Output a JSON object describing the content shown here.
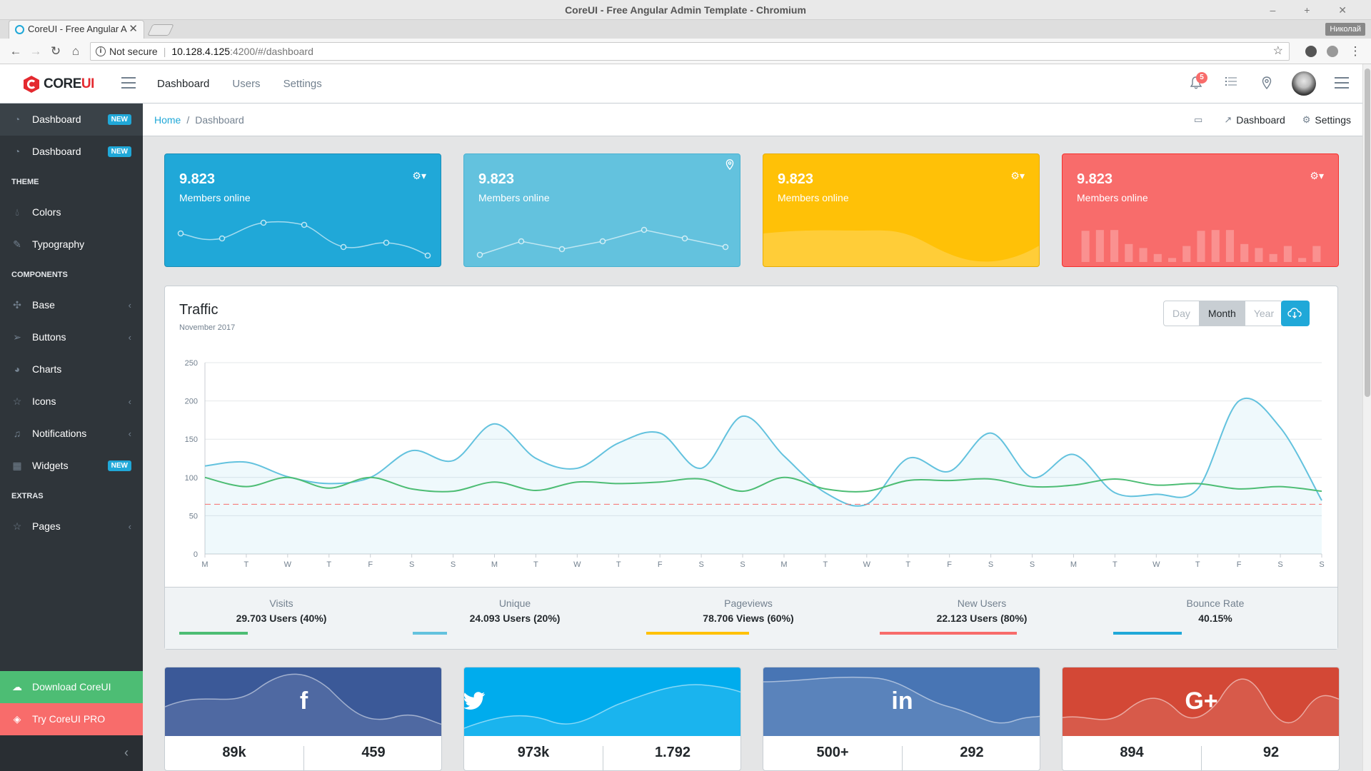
{
  "window": {
    "title": "CoreUI - Free Angular Admin Template - Chromium",
    "controls": "– + ✕",
    "profile": "Николай"
  },
  "tab": {
    "label": "CoreUI - Free Angular A",
    "close": "✕"
  },
  "address": {
    "security": "Not secure",
    "host": "10.128.4.125",
    "path": ":4200/#/dashboard"
  },
  "brand": {
    "core": "CORE",
    "ui": "UI"
  },
  "header": {
    "nav": [
      "Dashboard",
      "Users",
      "Settings"
    ],
    "notification_count": "5"
  },
  "sidebar": {
    "items": [
      {
        "label": "Dashboard",
        "badge": "NEW"
      },
      {
        "label": "Dashboard",
        "badge": "NEW"
      }
    ],
    "theme_title": "Theme",
    "theme": [
      "Colors",
      "Typography"
    ],
    "components_title": "Components",
    "components": [
      "Base",
      "Buttons",
      "Charts",
      "Icons",
      "Notifications",
      "Widgets"
    ],
    "widgets_badge": "NEW",
    "extras_title": "Extras",
    "extras": [
      "Pages"
    ],
    "download": "Download CoreUI",
    "pro": "Try CoreUI PRO"
  },
  "breadcrumb": {
    "home": "Home",
    "current": "Dashboard",
    "menu": [
      "Dashboard",
      "Settings"
    ]
  },
  "stat_cards": [
    {
      "value": "9.823",
      "label": "Members online",
      "color": "#20a8d8"
    },
    {
      "value": "9.823",
      "label": "Members online",
      "color": "#63c2de"
    },
    {
      "value": "9.823",
      "label": "Members online",
      "color": "#ffc107"
    },
    {
      "value": "9.823",
      "label": "Members online",
      "color": "#f86c6b"
    }
  ],
  "stat_bar_values": [
    78,
    80,
    80,
    45,
    35,
    20,
    10,
    40,
    78,
    80,
    80,
    45,
    35,
    20,
    40,
    10,
    40
  ],
  "traffic": {
    "title": "Traffic",
    "subtitle": "November 2017",
    "periods": [
      "Day",
      "Month",
      "Year"
    ],
    "active_period": "Month"
  },
  "chart_data": {
    "type": "line",
    "title": "Traffic",
    "x": [
      "M",
      "T",
      "W",
      "T",
      "F",
      "S",
      "S",
      "M",
      "T",
      "W",
      "T",
      "F",
      "S",
      "S",
      "M",
      "T",
      "W",
      "T",
      "F",
      "S",
      "S",
      "M",
      "T",
      "W",
      "T",
      "F",
      "S",
      "S"
    ],
    "ylim": [
      0,
      250
    ],
    "yticks": [
      0,
      50,
      100,
      150,
      200,
      250
    ],
    "series": [
      {
        "name": "Visits",
        "color": "#63c2de",
        "fill": true,
        "values": [
          115,
          120,
          101,
          92,
          100,
          135,
          122,
          170,
          125,
          112,
          145,
          158,
          112,
          180,
          128,
          80,
          65,
          125,
          108,
          158,
          100,
          130,
          80,
          78,
          85,
          200,
          165,
          70
        ]
      },
      {
        "name": "Unique",
        "color": "#4dbd74",
        "values": [
          100,
          88,
          100,
          86,
          100,
          85,
          82,
          94,
          83,
          94,
          92,
          94,
          98,
          82,
          100,
          85,
          82,
          96,
          96,
          98,
          88,
          90,
          98,
          90,
          92,
          85,
          88,
          82
        ]
      },
      {
        "name": "Bounce",
        "color": "#f86c6b",
        "dashed": true,
        "values": [
          65,
          65,
          65,
          65,
          65,
          65,
          65,
          65,
          65,
          65,
          65,
          65,
          65,
          65,
          65,
          65,
          65,
          65,
          65,
          65,
          65,
          65,
          65,
          65,
          65,
          65,
          65,
          65
        ]
      }
    ]
  },
  "metrics": [
    {
      "label": "Visits",
      "value": "29.703 Users (40%)",
      "percent": 40,
      "color": "#4dbd74"
    },
    {
      "label": "Unique",
      "value": "24.093 Users (20%)",
      "percent": 20,
      "color": "#63c2de"
    },
    {
      "label": "Pageviews",
      "value": "78.706 Views (60%)",
      "percent": 60,
      "color": "#ffc107"
    },
    {
      "label": "New Users",
      "value": "22.123 Users (80%)",
      "percent": 80,
      "color": "#f86c6b"
    },
    {
      "label": "Bounce Rate",
      "value": "40.15%",
      "percent": 40,
      "color": "#20a8d8"
    }
  ],
  "social": [
    {
      "network": "facebook",
      "glyph": "f",
      "color": "#3b5998",
      "left": "89k",
      "right": "459"
    },
    {
      "network": "twitter",
      "glyph": "🐦",
      "color": "#00aced",
      "left": "973k",
      "right": "1.792"
    },
    {
      "network": "linkedin",
      "glyph": "in",
      "color": "#4875b4",
      "left": "500+",
      "right": "292"
    },
    {
      "network": "google-plus",
      "glyph": "G+",
      "color": "#d34836",
      "left": "894",
      "right": "92"
    }
  ]
}
